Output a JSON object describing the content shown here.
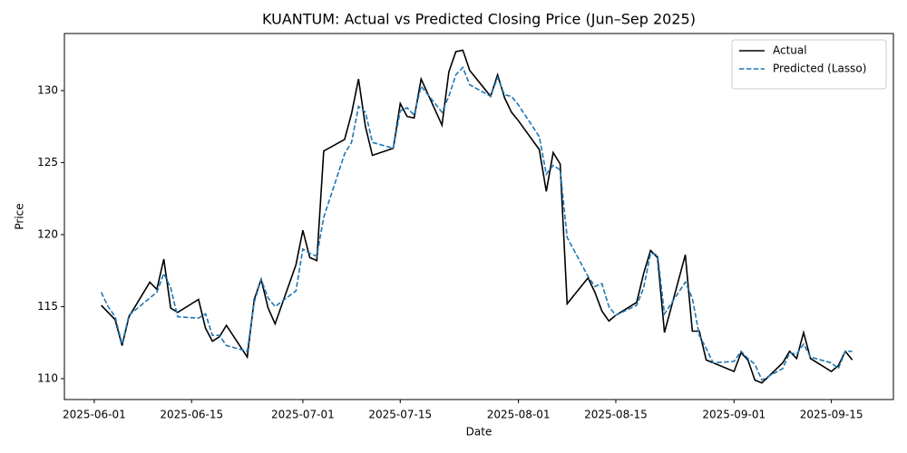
{
  "chart_data": {
    "type": "line",
    "title": "KUANTUM: Actual vs Predicted Closing Price (Jun–Sep 2025)",
    "xlabel": "Date",
    "ylabel": "Price",
    "x": [
      "2025-06-02",
      "2025-06-03",
      "2025-06-04",
      "2025-06-05",
      "2025-06-06",
      "2025-06-09",
      "2025-06-10",
      "2025-06-11",
      "2025-06-12",
      "2025-06-13",
      "2025-06-16",
      "2025-06-17",
      "2025-06-18",
      "2025-06-19",
      "2025-06-20",
      "2025-06-23",
      "2025-06-24",
      "2025-06-25",
      "2025-06-26",
      "2025-06-27",
      "2025-06-30",
      "2025-07-01",
      "2025-07-02",
      "2025-07-03",
      "2025-07-04",
      "2025-07-07",
      "2025-07-08",
      "2025-07-09",
      "2025-07-10",
      "2025-07-11",
      "2025-07-14",
      "2025-07-15",
      "2025-07-16",
      "2025-07-17",
      "2025-07-18",
      "2025-07-21",
      "2025-07-22",
      "2025-07-23",
      "2025-07-24",
      "2025-07-25",
      "2025-07-28",
      "2025-07-29",
      "2025-07-30",
      "2025-07-31",
      "2025-08-01",
      "2025-08-04",
      "2025-08-05",
      "2025-08-06",
      "2025-08-07",
      "2025-08-08",
      "2025-08-11",
      "2025-08-12",
      "2025-08-13",
      "2025-08-14",
      "2025-08-15",
      "2025-08-18",
      "2025-08-19",
      "2025-08-20",
      "2025-08-21",
      "2025-08-22",
      "2025-08-25",
      "2025-08-26",
      "2025-08-27",
      "2025-08-28",
      "2025-08-29",
      "2025-09-01",
      "2025-09-02",
      "2025-09-03",
      "2025-09-04",
      "2025-09-05",
      "2025-09-08",
      "2025-09-09",
      "2025-09-10",
      "2025-09-11",
      "2025-09-12",
      "2025-09-15",
      "2025-09-16",
      "2025-09-17",
      "2025-09-18"
    ],
    "series": [
      {
        "name": "Actual",
        "color": "#000000",
        "dash": "solid",
        "values": [
          115.1,
          114.6,
          114.1,
          112.3,
          114.3,
          116.7,
          116.2,
          118.3,
          114.9,
          114.6,
          115.5,
          113.5,
          112.6,
          112.9,
          113.7,
          111.5,
          115.5,
          116.9,
          114.9,
          113.8,
          117.9,
          120.3,
          118.4,
          118.2,
          125.8,
          126.6,
          128.4,
          130.8,
          127.5,
          125.5,
          126.0,
          129.1,
          128.2,
          128.1,
          130.8,
          127.6,
          131.3,
          132.7,
          132.8,
          131.4,
          129.6,
          131.1,
          129.5,
          128.5,
          127.9,
          125.9,
          123.0,
          125.7,
          124.9,
          115.2,
          117.0,
          116.0,
          114.7,
          114.0,
          114.4,
          115.3,
          117.3,
          118.9,
          118.4,
          113.2,
          118.6,
          113.3,
          113.3,
          111.3,
          111.1,
          110.5,
          111.8,
          111.3,
          109.9,
          109.7,
          111.1,
          111.9,
          111.4,
          113.2,
          111.4,
          110.5,
          110.9,
          111.9,
          111.3
        ]
      },
      {
        "name": "Predicted (Lasso)",
        "color": "#1f77b4",
        "dash": "dashed",
        "values": [
          116.0,
          115.0,
          114.3,
          112.4,
          114.4,
          115.6,
          116.0,
          117.3,
          116.3,
          114.3,
          114.2,
          114.5,
          113.0,
          113.0,
          112.3,
          111.9,
          115.3,
          116.9,
          115.6,
          115.0,
          116.1,
          119.0,
          118.7,
          118.5,
          121.2,
          125.6,
          126.4,
          128.9,
          128.5,
          126.4,
          126.0,
          128.6,
          128.8,
          128.3,
          130.3,
          128.5,
          129.6,
          131.1,
          131.6,
          130.4,
          129.6,
          130.9,
          129.7,
          129.6,
          129.0,
          126.8,
          124.2,
          124.8,
          124.5,
          119.8,
          117.1,
          116.4,
          116.6,
          115.0,
          114.4,
          115.1,
          116.3,
          118.7,
          118.6,
          114.5,
          116.7,
          115.6,
          113.0,
          112.1,
          111.1,
          111.2,
          111.9,
          111.4,
          111.0,
          109.9,
          110.7,
          111.8,
          111.7,
          112.4,
          111.5,
          111.1,
          110.7,
          111.9,
          111.9
        ]
      }
    ],
    "xlim": [
      "2025-05-27T17:00",
      "2025-09-23T22:00"
    ],
    "xticks": [
      "2025-06-01",
      "2025-06-15",
      "2025-07-01",
      "2025-07-15",
      "2025-08-01",
      "2025-08-15",
      "2025-09-01",
      "2025-09-15"
    ],
    "ylim": [
      108.55,
      133.96
    ],
    "yticks": [
      110,
      115,
      120,
      125,
      130
    ],
    "grid": false,
    "legend": "upper right"
  }
}
